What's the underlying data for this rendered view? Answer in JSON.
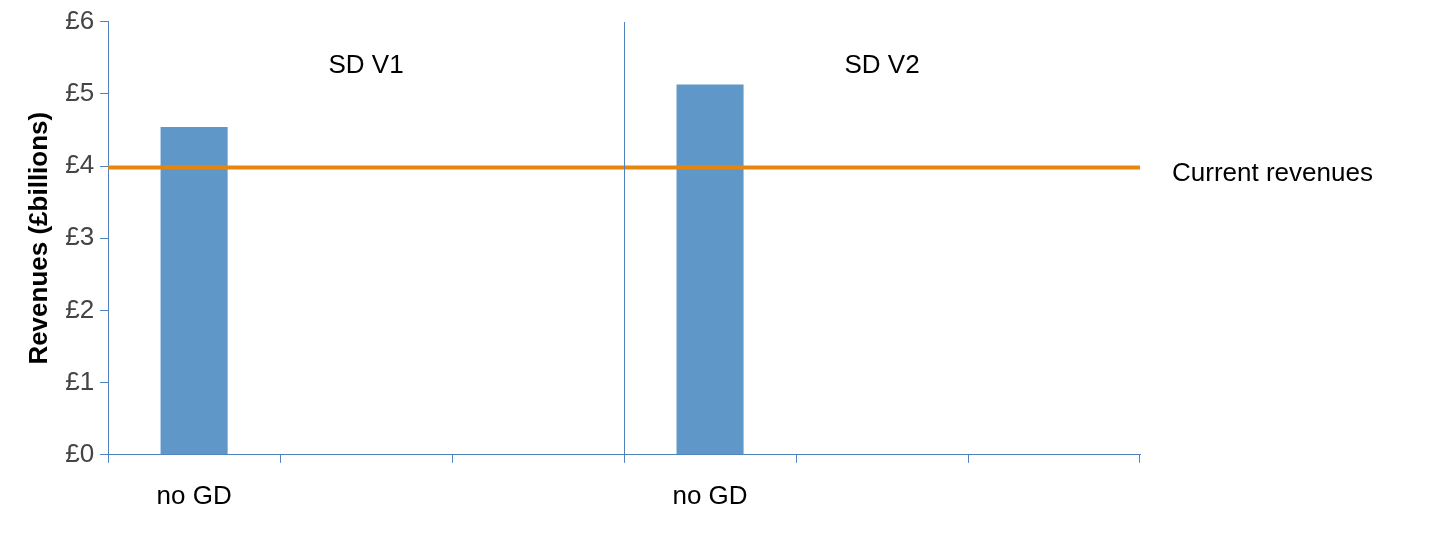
{
  "chart_data": {
    "type": "bar",
    "ylabel": "Revenues (£billions)",
    "categories": [
      "no GD",
      null,
      null,
      "no GD",
      null,
      null
    ],
    "series": [
      {
        "color": "#6097c9",
        "values": [
          4.54,
          null,
          null,
          5.13,
          null,
          null
        ]
      }
    ],
    "ylim": [
      0,
      6
    ],
    "yticks": [
      {
        "value": 0,
        "label": "£0"
      },
      {
        "value": 1,
        "label": "£1"
      },
      {
        "value": 2,
        "label": "£2"
      },
      {
        "value": 3,
        "label": "£3"
      },
      {
        "value": 4,
        "label": "£4"
      },
      {
        "value": 5,
        "label": "£5"
      },
      {
        "value": 6,
        "label": "£6"
      }
    ],
    "ref_lines": [
      {
        "axis": "y",
        "value": 3.98,
        "label": "Current revenues",
        "color": "#e8850c"
      }
    ],
    "annotations": [
      "SD V1",
      "SD V2"
    ],
    "grid": false,
    "legend": false
  }
}
